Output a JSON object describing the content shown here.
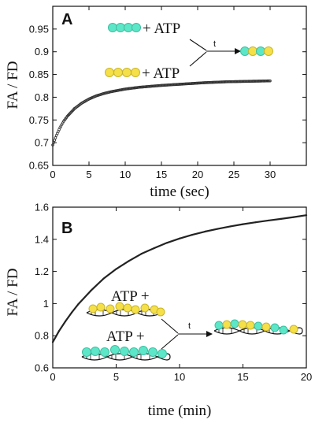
{
  "chart_data": [
    {
      "type": "scatter",
      "panel_label": "A",
      "xlabel": "time (sec)",
      "ylabel": "FA / FD",
      "xlim": [
        0,
        35
      ],
      "ylim": [
        0.65,
        1.0
      ],
      "x_ticks": [
        0,
        5,
        10,
        15,
        20,
        25,
        30
      ],
      "y_ticks": [
        0.65,
        0.7,
        0.75,
        0.8,
        0.85,
        0.9,
        0.95
      ],
      "y_tick_labels": [
        "0.65",
        "0.7",
        "0.75",
        "0.8",
        "0.85",
        "0.9",
        "0.95"
      ],
      "grid": false,
      "series": [
        {
          "x": [
            0,
            0.5,
            1,
            1.5,
            2,
            3,
            4,
            5,
            6,
            7,
            8,
            10,
            12,
            15,
            18,
            21,
            24,
            27,
            30
          ],
          "y": [
            0.695,
            0.716,
            0.733,
            0.747,
            0.758,
            0.775,
            0.787,
            0.796,
            0.803,
            0.808,
            0.812,
            0.818,
            0.822,
            0.826,
            0.829,
            0.832,
            0.834,
            0.835,
            0.836
          ],
          "color": "#333333"
        }
      ],
      "annotations": {
        "cyan_complex_label": "+ ATP",
        "yellow_complex_label": "+ ATP",
        "arrow_label": "t"
      }
    },
    {
      "type": "line",
      "panel_label": "B",
      "xlabel": "time (min)",
      "ylabel": "FA / FD",
      "xlim": [
        0,
        20
      ],
      "ylim": [
        0.6,
        1.6
      ],
      "x_ticks": [
        0,
        5,
        10,
        15,
        20
      ],
      "y_ticks": [
        0.6,
        0.8,
        1.0,
        1.2,
        1.4,
        1.6
      ],
      "y_tick_labels": [
        "0.6",
        "0.8",
        "1",
        "1.2",
        "1.4",
        "1.6"
      ],
      "grid": false,
      "series": [
        {
          "x": [
            0,
            0.5,
            1,
            1.5,
            2,
            3,
            4,
            5,
            6,
            7,
            8,
            9,
            10,
            11,
            12,
            13,
            14,
            15,
            16,
            17,
            18,
            19,
            20
          ],
          "y": [
            0.76,
            0.83,
            0.89,
            0.945,
            0.995,
            1.08,
            1.155,
            1.215,
            1.265,
            1.31,
            1.345,
            1.378,
            1.405,
            1.428,
            1.448,
            1.465,
            1.48,
            1.494,
            1.506,
            1.517,
            1.527,
            1.538,
            1.55
          ],
          "color": "#222222"
        }
      ],
      "annotations": {
        "yellow_dna_label": "ATP +",
        "cyan_dna_label": "ATP +",
        "arrow_label": "t"
      }
    }
  ],
  "colors": {
    "cyan": "#5ee6c8",
    "yellow": "#f5e04a",
    "curve": "#222222"
  }
}
